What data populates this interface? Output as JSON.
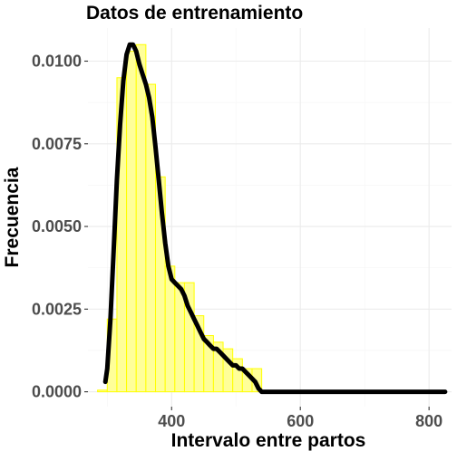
{
  "chart_data": {
    "type": "bar",
    "title": "Datos de entrenamiento",
    "xlabel": "Intervalo entre partos",
    "ylabel": "Frecuencia",
    "xlim": [
      270,
      835
    ],
    "ylim": [
      -0.00045,
      0.011
    ],
    "x_ticks": [
      400,
      600,
      800
    ],
    "x_tick_labels": [
      "400",
      "600",
      "800"
    ],
    "y_ticks": [
      0,
      0.0025,
      0.005,
      0.0075,
      0.01
    ],
    "y_tick_labels": [
      "0.0000",
      "0.0025",
      "0.0050",
      "0.0075",
      "0.0100"
    ],
    "grid": true,
    "histogram": {
      "bin_width": 15,
      "bins": [
        {
          "x0": 285,
          "x1": 300,
          "value": 5e-05
        },
        {
          "x0": 300,
          "x1": 315,
          "value": 0.0022
        },
        {
          "x0": 315,
          "x1": 330,
          "value": 0.0095
        },
        {
          "x0": 330,
          "x1": 345,
          "value": 0.0103
        },
        {
          "x0": 345,
          "x1": 360,
          "value": 0.0105
        },
        {
          "x0": 360,
          "x1": 375,
          "value": 0.0093
        },
        {
          "x0": 375,
          "x1": 390,
          "value": 0.0065
        },
        {
          "x0": 390,
          "x1": 405,
          "value": 0.0038
        },
        {
          "x0": 405,
          "x1": 420,
          "value": 0.0033
        },
        {
          "x0": 420,
          "x1": 435,
          "value": 0.0033
        },
        {
          "x0": 435,
          "x1": 450,
          "value": 0.0023
        },
        {
          "x0": 450,
          "x1": 465,
          "value": 0.0017
        },
        {
          "x0": 465,
          "x1": 480,
          "value": 0.0015
        },
        {
          "x0": 480,
          "x1": 495,
          "value": 0.0013
        },
        {
          "x0": 495,
          "x1": 510,
          "value": 0.001
        },
        {
          "x0": 510,
          "x1": 525,
          "value": 0.0007
        },
        {
          "x0": 525,
          "x1": 540,
          "value": 0.0007
        }
      ],
      "fill": "#ffff99",
      "stroke": "#ffff00"
    },
    "density": {
      "x": [
        297,
        300,
        305,
        310,
        315,
        320,
        325,
        330,
        335,
        340,
        345,
        350,
        355,
        360,
        365,
        370,
        375,
        380,
        385,
        390,
        395,
        400,
        405,
        410,
        415,
        420,
        425,
        430,
        435,
        440,
        445,
        450,
        455,
        460,
        465,
        470,
        475,
        480,
        485,
        490,
        495,
        500,
        505,
        510,
        515,
        520,
        525,
        530,
        535,
        540,
        545,
        550,
        560,
        580,
        600,
        620,
        640,
        660,
        680,
        700,
        720,
        740,
        760,
        780,
        800,
        825
      ],
      "y": [
        0.0003,
        0.0007,
        0.0022,
        0.0043,
        0.0064,
        0.0081,
        0.0094,
        0.0102,
        0.0105,
        0.0105,
        0.0103,
        0.0099,
        0.0096,
        0.0093,
        0.0089,
        0.0083,
        0.0074,
        0.0064,
        0.0054,
        0.0045,
        0.0038,
        0.0034,
        0.0033,
        0.0032,
        0.0031,
        0.0029,
        0.0026,
        0.0024,
        0.0022,
        0.002,
        0.0018,
        0.0016,
        0.0015,
        0.0014,
        0.0013,
        0.0013,
        0.0012,
        0.0011,
        0.001,
        0.0009,
        0.0008,
        0.0008,
        0.0007,
        0.0007,
        0.0006,
        0.0005,
        0.0004,
        0.0003,
        0.0001,
        0.0,
        0.0,
        0.0,
        0.0,
        0.0,
        0.0,
        0.0,
        0.0,
        0.0,
        0.0,
        0.0,
        0.0,
        0.0,
        0.0,
        0.0,
        0.0,
        0.0
      ],
      "color": "#000000"
    },
    "colors": {
      "panel_background": "#ffffff",
      "grid_major": "#ebebeb",
      "grid_minor": "#f5f5f5",
      "axis_text": "#4d4d4d"
    }
  }
}
